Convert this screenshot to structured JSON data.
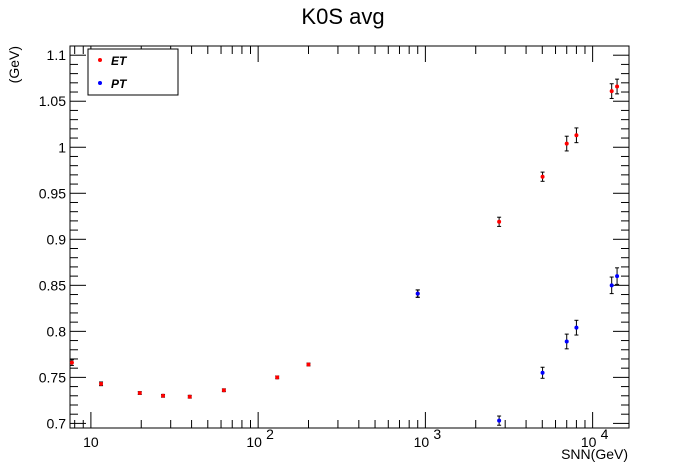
{
  "chart_data": {
    "type": "scatter",
    "title": "K0S avg",
    "xlabel": "SNN(GeV)",
    "ylabel": "(GeV)",
    "x_scale": "log",
    "xlim": [
      7.5,
      16500
    ],
    "ylim": [
      0.695,
      1.11
    ],
    "grid": false,
    "legend_position": "top-left",
    "y_ticks": [
      0.7,
      0.75,
      0.8,
      0.85,
      0.9,
      0.95,
      1,
      1.05,
      1.1
    ],
    "y_tick_labels": [
      "0.7",
      "0.75",
      "0.8",
      "0.85",
      "0.9",
      "0.95",
      "1",
      "1.05",
      "1.1"
    ],
    "x_tick_labels": [
      {
        "value": 10,
        "base": "10",
        "exp": ""
      },
      {
        "value": 100,
        "base": "10",
        "exp": "2"
      },
      {
        "value": 1000,
        "base": "10",
        "exp": "3"
      },
      {
        "value": 10000,
        "base": "10",
        "exp": "4"
      }
    ],
    "series": [
      {
        "name": "ET",
        "color": "#ff0000",
        "points": [
          {
            "x": 7.7,
            "y": 0.766,
            "err": 0.003
          },
          {
            "x": 11.5,
            "y": 0.743,
            "err": 0.002
          },
          {
            "x": 19.6,
            "y": 0.733,
            "err": 0.0015
          },
          {
            "x": 27,
            "y": 0.73,
            "err": 0.0015
          },
          {
            "x": 39,
            "y": 0.729,
            "err": 0.0015
          },
          {
            "x": 62.4,
            "y": 0.736,
            "err": 0.0015
          },
          {
            "x": 130,
            "y": 0.75,
            "err": 0.0015
          },
          {
            "x": 200,
            "y": 0.764,
            "err": 0.0015
          },
          {
            "x": 900,
            "y": 0.841,
            "err": 0.004
          },
          {
            "x": 2760,
            "y": 0.919,
            "err": 0.005
          },
          {
            "x": 5020,
            "y": 0.968,
            "err": 0.005
          },
          {
            "x": 7000,
            "y": 1.004,
            "err": 0.008
          },
          {
            "x": 8000,
            "y": 1.013,
            "err": 0.008
          },
          {
            "x": 13000,
            "y": 1.061,
            "err": 0.008
          },
          {
            "x": 14000,
            "y": 1.066,
            "err": 0.008
          }
        ]
      },
      {
        "name": "PT",
        "color": "#0000ff",
        "points": [
          {
            "x": 900,
            "y": 0.841,
            "err": 0.004
          },
          {
            "x": 2760,
            "y": 0.703,
            "err": 0.005
          },
          {
            "x": 5020,
            "y": 0.755,
            "err": 0.006
          },
          {
            "x": 7000,
            "y": 0.789,
            "err": 0.008
          },
          {
            "x": 8000,
            "y": 0.804,
            "err": 0.008
          },
          {
            "x": 13000,
            "y": 0.85,
            "err": 0.009
          },
          {
            "x": 14000,
            "y": 0.86,
            "err": 0.009
          }
        ]
      }
    ]
  }
}
